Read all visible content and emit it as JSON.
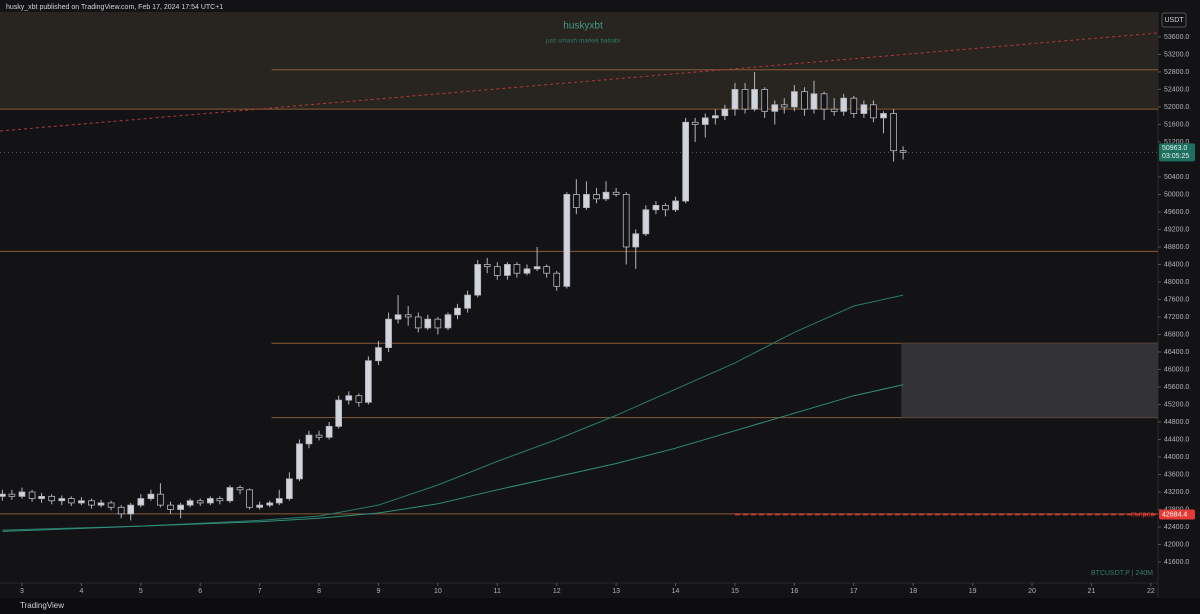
{
  "header": "husky_xbt published on TradingView.com, Feb 17, 2024 17:54 UTC+1",
  "footer": "TradingView",
  "chart_data": {
    "type": "candlestick",
    "title": "huskyxbt",
    "subtitle": "just smash market bababi",
    "symbol": "BTCUSDT.P | 240M",
    "currency": "USDT",
    "up_color": "#d1d4dc",
    "down_color": "#131316",
    "wick_color": "#b2b5be",
    "x": [
      2.67,
      2.83,
      3,
      3.17,
      3.33,
      3.5,
      3.67,
      3.83,
      4,
      4.17,
      4.33,
      4.5,
      4.67,
      4.83,
      5,
      5.17,
      5.33,
      5.5,
      5.67,
      5.83,
      6,
      6.17,
      6.33,
      6.5,
      6.67,
      6.83,
      7,
      7.17,
      7.33,
      7.5,
      7.67,
      7.83,
      8,
      8.17,
      8.33,
      8.5,
      8.67,
      8.83,
      9,
      9.17,
      9.33,
      9.5,
      9.67,
      9.83,
      10,
      10.17,
      10.33,
      10.5,
      10.67,
      10.83,
      11,
      11.17,
      11.33,
      11.5,
      11.67,
      11.83,
      12,
      12.17,
      12.33,
      12.5,
      12.67,
      12.83,
      13,
      13.17,
      13.33,
      13.5,
      13.67,
      13.83,
      14,
      14.17,
      14.33,
      14.5,
      14.67,
      14.83,
      15,
      15.17,
      15.33,
      15.5,
      15.67,
      15.83,
      16,
      16.17,
      16.33,
      16.5,
      16.67,
      16.83,
      17,
      17.17,
      17.33,
      17.5,
      17.67,
      17.83
    ],
    "open": [
      43100,
      43150,
      43100,
      43200,
      43050,
      43100,
      43000,
      43050,
      42950,
      43000,
      42900,
      42950,
      42850,
      42700,
      42900,
      43050,
      43150,
      42900,
      42800,
      42900,
      43000,
      42950,
      43050,
      43000,
      43300,
      43250,
      42850,
      42900,
      42950,
      43050,
      43500,
      44300,
      44500,
      44450,
      44700,
      45300,
      45400,
      45250,
      46200,
      46500,
      47150,
      47250,
      47200,
      46950,
      47150,
      46950,
      47250,
      47400,
      47700,
      48400,
      48350,
      48150,
      48400,
      48200,
      48300,
      48350,
      48200,
      47900,
      50000,
      49700,
      50000,
      49900,
      50050,
      50000,
      48800,
      49100,
      49650,
      49750,
      49650,
      49850,
      51650,
      51600,
      51750,
      51800,
      51950,
      52400,
      51950,
      52400,
      51900,
      52050,
      52000,
      52350,
      51950,
      52300,
      51950,
      51900,
      52200,
      51850,
      52050,
      51750,
      51850,
      51000
    ],
    "high": [
      43250,
      43250,
      43300,
      43250,
      43180,
      43150,
      43120,
      43100,
      43080,
      43050,
      43020,
      43000,
      42900,
      42950,
      43150,
      43250,
      43400,
      42980,
      42950,
      43050,
      43050,
      43100,
      43100,
      43350,
      43350,
      43280,
      42980,
      43000,
      43250,
      43650,
      44400,
      44600,
      44600,
      44800,
      45400,
      45500,
      45450,
      46300,
      46650,
      47300,
      47700,
      47450,
      47300,
      47250,
      47200,
      47300,
      47500,
      47800,
      48500,
      48550,
      48450,
      48450,
      48450,
      48400,
      48800,
      48400,
      48250,
      50050,
      50350,
      50300,
      50150,
      50300,
      50150,
      50050,
      49200,
      49750,
      49850,
      49800,
      49950,
      51750,
      51750,
      51850,
      51950,
      52050,
      52550,
      52550,
      52800,
      52450,
      52150,
      52200,
      52500,
      52450,
      52600,
      52350,
      52200,
      52300,
      52250,
      52150,
      52150,
      51900,
      51950,
      51100
    ],
    "low": [
      43000,
      43020,
      43050,
      42980,
      42950,
      42920,
      42900,
      42880,
      42900,
      42820,
      42850,
      42780,
      42600,
      42550,
      42850,
      43000,
      42850,
      42700,
      42600,
      42850,
      42880,
      42900,
      42920,
      42950,
      43150,
      42800,
      42800,
      42850,
      42900,
      43000,
      43450,
      44200,
      44380,
      44400,
      44650,
      45200,
      45150,
      45200,
      46100,
      46400,
      47050,
      47000,
      46850,
      46900,
      46800,
      46900,
      47150,
      47300,
      47650,
      48200,
      48050,
      48050,
      48100,
      48150,
      48250,
      48100,
      47800,
      47850,
      49550,
      49650,
      49800,
      49850,
      49950,
      48400,
      48300,
      49050,
      49550,
      49500,
      49600,
      49800,
      51200,
      51300,
      51600,
      51700,
      51800,
      51850,
      51900,
      51750,
      51600,
      51850,
      51900,
      51800,
      51850,
      51700,
      51800,
      51800,
      51750,
      51750,
      51650,
      51400,
      50750,
      50800
    ],
    "close": [
      43150,
      43100,
      43200,
      43050,
      43100,
      43000,
      43050,
      42950,
      43000,
      42900,
      42950,
      42850,
      42700,
      42900,
      43050,
      43150,
      42900,
      42800,
      42900,
      43000,
      42950,
      43050,
      43000,
      43300,
      43250,
      42850,
      42900,
      42950,
      43050,
      43500,
      44300,
      44500,
      44450,
      44700,
      45300,
      45400,
      45250,
      46200,
      46500,
      47150,
      47250,
      47200,
      46950,
      47150,
      46950,
      47250,
      47400,
      47700,
      48400,
      48350,
      48150,
      48400,
      48200,
      48300,
      48350,
      48200,
      47900,
      50000,
      49700,
      50000,
      49900,
      50050,
      50000,
      48800,
      49100,
      49650,
      49750,
      49650,
      49850,
      51650,
      51600,
      51750,
      51800,
      51950,
      52400,
      51950,
      52400,
      51900,
      52050,
      52000,
      52350,
      51950,
      52300,
      51950,
      51900,
      52200,
      51850,
      52050,
      51750,
      51850,
      51000,
      50963
    ],
    "moving_averages": [
      {
        "color": "#2b7a6a",
        "x": [
          2.67,
          5,
          7,
          8,
          9,
          10,
          11,
          12,
          13,
          14,
          15,
          16,
          17,
          17.83
        ],
        "values": [
          42330,
          42420,
          42550,
          42650,
          42900,
          43360,
          43900,
          44400,
          44950,
          45550,
          46150,
          46850,
          47450,
          47700
        ]
      },
      {
        "color": "#2f8f7a",
        "x": [
          2.67,
          5,
          7,
          8,
          9,
          10,
          11,
          12,
          13,
          14,
          15,
          16,
          17,
          17.83
        ],
        "values": [
          42300,
          42420,
          42520,
          42600,
          42720,
          42930,
          43250,
          43550,
          43850,
          44200,
          44600,
          45000,
          45400,
          45650
        ]
      }
    ],
    "zone": {
      "bottom": 51950,
      "color": "#28241f"
    },
    "levels": [
      {
        "price": 52850,
        "from": 7.2
      },
      {
        "price": 51950
      },
      {
        "price": 48700
      },
      {
        "price": 46600,
        "from": 7.2
      },
      {
        "price": 44900,
        "from": 7.2
      },
      {
        "price": 42700
      }
    ],
    "level_color": "#8a5a36",
    "box": {
      "top": 46600,
      "bottom": 44900,
      "from": 17.8,
      "color": "#333336"
    },
    "trendline": {
      "x": [
        2.63,
        22.12
      ],
      "y": [
        51451,
        53691
      ],
      "color": "#b33a3a"
    },
    "last_price": {
      "value": 50963,
      "label": "50963.0",
      "countdown": "03:05:25",
      "color": "#1f6f60"
    },
    "npoc": {
      "value": 42684.4,
      "name": "m.npoc",
      "from": 15.0,
      "color": "#e53935"
    },
    "xlim": [
      2.63,
      22.12
    ],
    "xticks": [
      3,
      4,
      5,
      6,
      7,
      8,
      9,
      10,
      11,
      12,
      13,
      14,
      15,
      16,
      17,
      18,
      19,
      20,
      21,
      22
    ],
    "ylim": [
      41120,
      54170
    ],
    "yticks": [
      {
        "value": 41600,
        "label": "41600.0"
      },
      {
        "value": 42000,
        "label": "42000.0"
      },
      {
        "value": 42400,
        "label": "42400.0"
      },
      {
        "value": 42800,
        "label": "42800.0"
      },
      {
        "value": 43200,
        "label": "43200.0"
      },
      {
        "value": 43600,
        "label": "43600.0"
      },
      {
        "value": 44000,
        "label": "44000.0"
      },
      {
        "value": 44400,
        "label": "44400.0"
      },
      {
        "value": 44800,
        "label": "44800.0"
      },
      {
        "value": 45200,
        "label": "45200.0"
      },
      {
        "value": 45600,
        "label": "45600.0"
      },
      {
        "value": 46000,
        "label": "46000.0"
      },
      {
        "value": 46400,
        "label": "46400.0"
      },
      {
        "value": 46800,
        "label": "46800.0"
      },
      {
        "value": 47200,
        "label": "47200.0"
      },
      {
        "value": 47600,
        "label": "47600.0"
      },
      {
        "value": 48000,
        "label": "48000.0"
      },
      {
        "value": 48400,
        "label": "48400.0"
      },
      {
        "value": 48800,
        "label": "48800.0"
      },
      {
        "value": 49200,
        "label": "49200.0"
      },
      {
        "value": 49600,
        "label": "49600.0"
      },
      {
        "value": 50000,
        "label": "50000.0"
      },
      {
        "value": 50400,
        "label": "50400.0"
      },
      {
        "value": 51200,
        "label": "51200.0"
      },
      {
        "value": 51600,
        "label": "51600.0"
      },
      {
        "value": 52000,
        "label": "52000.0"
      },
      {
        "value": 52400,
        "label": "52400.0"
      },
      {
        "value": 52800,
        "label": "52800.0"
      },
      {
        "value": 53200,
        "label": "53200.0"
      },
      {
        "value": 53600,
        "label": "53600.0"
      }
    ]
  }
}
